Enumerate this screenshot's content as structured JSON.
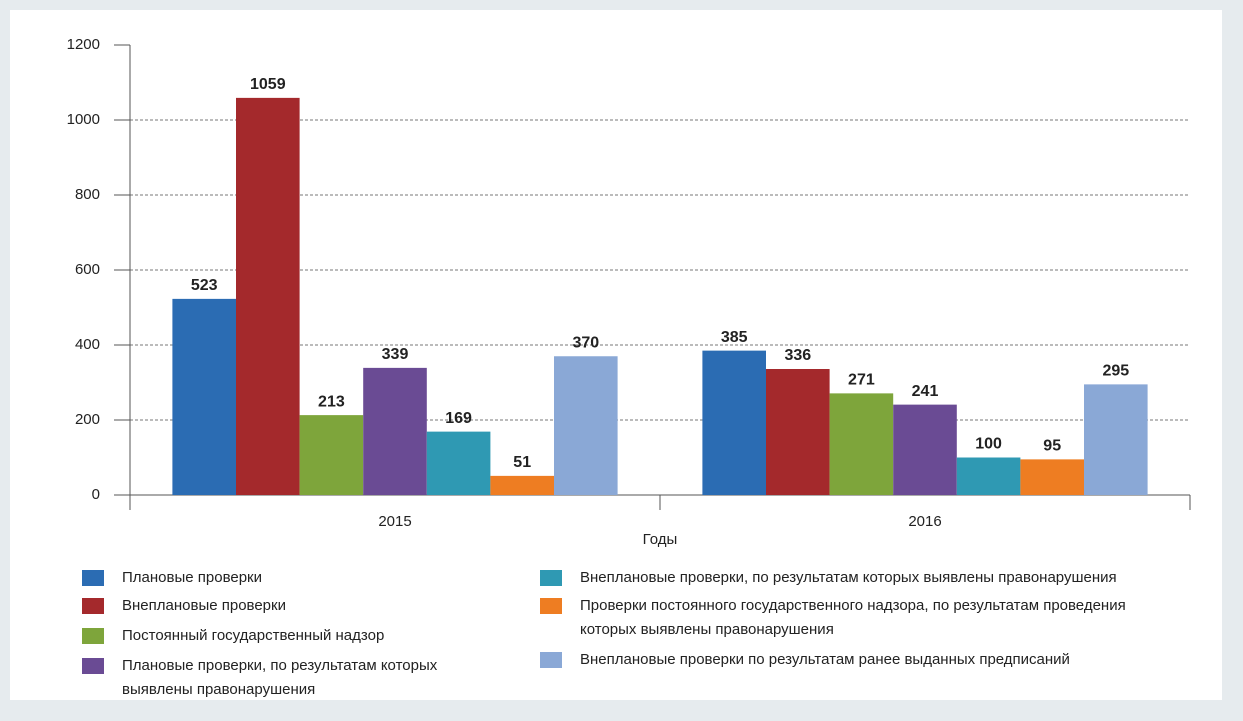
{
  "chart_data": {
    "type": "bar",
    "x_label": "Годы",
    "categories": [
      "2015",
      "2016"
    ],
    "series": [
      {
        "name": "Плановые проверки",
        "color": "#2b6cb3",
        "values": [
          523,
          385
        ]
      },
      {
        "name": "Внеплановые проверки",
        "color": "#a4292c",
        "values": [
          1059,
          336
        ]
      },
      {
        "name": "Постоянный государственный надзор",
        "color": "#7ea53b",
        "values": [
          213,
          271
        ]
      },
      {
        "name": "Плановые проверки, по результатам которых выявлены правонарушения",
        "color": "#6a4b94",
        "values": [
          339,
          241
        ]
      },
      {
        "name": "Внеплановые проверки, по результатам которых выявлены правонарушения",
        "color": "#2f99b3",
        "values": [
          169,
          100
        ]
      },
      {
        "name": "Проверки постоянного государственного надзора, по результатам проведения которых выявлены правонарушения",
        "color": "#ee7d22",
        "values": [
          51,
          95
        ]
      },
      {
        "name": "Внеплановые проверки по результатам ранее выданных предписаний",
        "color": "#8aa8d6",
        "values": [
          370,
          295
        ]
      }
    ],
    "ylim": [
      0,
      1200
    ],
    "yticks": [
      0,
      200,
      400,
      600,
      800,
      1000,
      1200
    ],
    "grid": true
  }
}
